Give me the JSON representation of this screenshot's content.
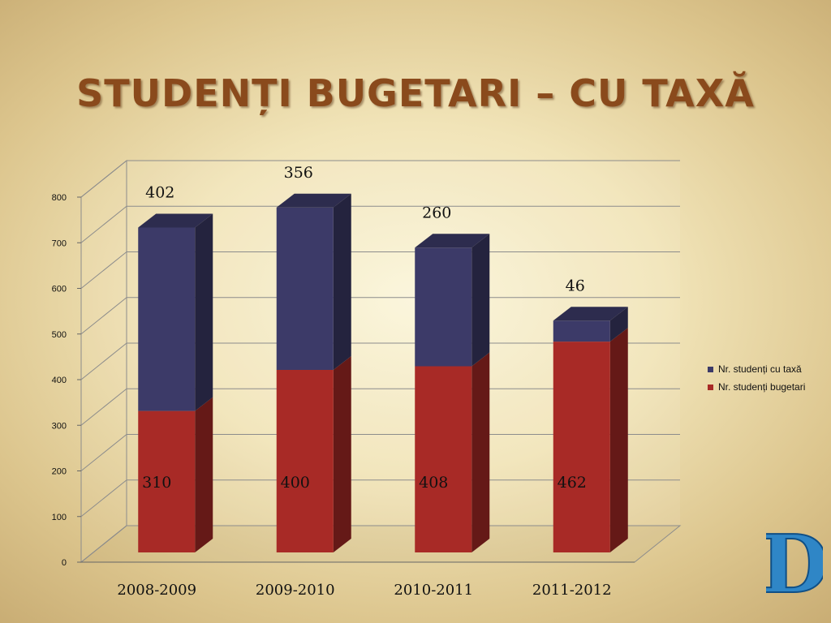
{
  "title": "STUDENȚI BUGETARI – CU TAXĂ",
  "logo_letter": "D",
  "chart_data": {
    "type": "bar",
    "stacked": true,
    "three_d": true,
    "categories": [
      "2008-2009",
      "2009-2010",
      "2010-2011",
      "2011-2012"
    ],
    "series": [
      {
        "name": "Nr. studenți bugetari",
        "values": [
          310,
          400,
          408,
          462
        ],
        "color": "#a82a26"
      },
      {
        "name": "Nr. studenți cu taxă",
        "values": [
          402,
          356,
          260,
          46
        ],
        "color": "#3c3a68"
      }
    ],
    "ylim": [
      0,
      800
    ],
    "yticks": [
      "0",
      "100",
      "200",
      "300",
      "400",
      "500",
      "600",
      "700",
      "800"
    ],
    "grid": true,
    "legend_position": "right"
  }
}
